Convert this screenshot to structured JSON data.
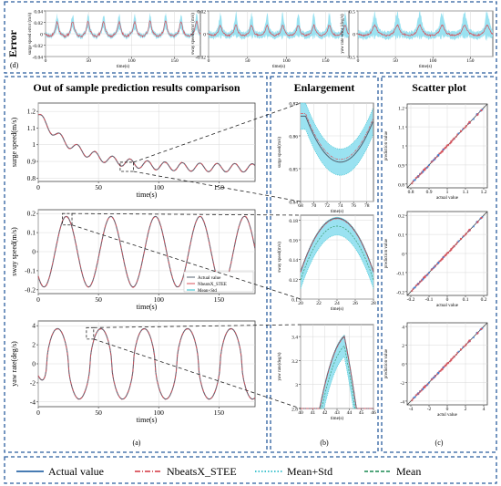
{
  "sections": {
    "error_title": "Error",
    "comparison_title": "Out of sample prediction results comparison",
    "enlargement_title": "Enlargement",
    "scatter_title": "Scatter plot"
  },
  "panel_tags": {
    "d": "(d)",
    "a": "(a)",
    "b": "(b)",
    "c": "(c)"
  },
  "legend": {
    "items": [
      {
        "label": "Actual value",
        "style": "solid",
        "color": "#2e6aa8"
      },
      {
        "label": "NbeatsX_STEE",
        "style": "dashdot",
        "color": "#d9505a"
      },
      {
        "label": "Mean+Std",
        "style": "dotted",
        "color": "#2bbdc9"
      },
      {
        "label": "Mean",
        "style": "dashed",
        "color": "#3a9a6a"
      }
    ]
  },
  "colors": {
    "actual": "#556070",
    "prediction": "#d9505a",
    "mean": "#2bbdc9",
    "band": "#8fdff0",
    "box": "#2b5d9e"
  },
  "chart_data": [
    {
      "id": "error-surge",
      "type": "line",
      "title": "",
      "xlabel": "time(s)",
      "ylabel": "surge speed error (m/s)",
      "xlim": [
        0,
        180
      ],
      "ylim": [
        -0.04,
        0.04
      ],
      "xticks": [
        0,
        50,
        100,
        150
      ],
      "yticks": [
        -0.04,
        -0.02,
        0,
        0.02,
        0.04
      ],
      "series": [
        {
          "kind": "error",
          "period": 18,
          "amp": 0.017,
          "band": 0.01
        }
      ]
    },
    {
      "id": "error-sway",
      "type": "line",
      "title": "",
      "xlabel": "time(s)",
      "ylabel": "sway speed error (m/s)",
      "xlim": [
        0,
        180
      ],
      "ylim": [
        -0.02,
        0.02
      ],
      "xticks": [
        0,
        50,
        100,
        150
      ],
      "yticks": [
        -0.02,
        0,
        0.02
      ],
      "series": [
        {
          "kind": "error",
          "period": 20,
          "amp": 0.006,
          "band": 0.008
        }
      ]
    },
    {
      "id": "error-yaw",
      "type": "line",
      "title": "",
      "xlabel": "time(s)",
      "ylabel": "yaw rate error (deg/s)",
      "xlim": [
        0,
        180
      ],
      "ylim": [
        -0.5,
        0.5
      ],
      "xticks": [
        0,
        50,
        100,
        150
      ],
      "yticks": [
        -0.5,
        0,
        0.5
      ],
      "series": [
        {
          "kind": "error",
          "period": 30,
          "amp": 0.15,
          "band": 0.22
        }
      ]
    },
    {
      "id": "surge-main",
      "type": "line",
      "xlabel": "time(s)",
      "ylabel": "surge speed(m/s)",
      "xlim": [
        0,
        180
      ],
      "ylim": [
        0.78,
        1.25
      ],
      "xticks": [
        0,
        50,
        100,
        150
      ],
      "yticks": [
        0.8,
        0.9,
        1.0,
        1.1,
        1.2
      ],
      "series": [
        {
          "name": "Actual value",
          "kind": "surge"
        },
        {
          "name": "NbeatsX_STEE",
          "kind": "surge"
        }
      ]
    },
    {
      "id": "sway-main",
      "type": "line",
      "xlabel": "time(s)",
      "ylabel": "sway speed(m/s)",
      "xlim": [
        0,
        180
      ],
      "ylim": [
        -0.22,
        0.22
      ],
      "xticks": [
        0,
        50,
        100,
        150
      ],
      "yticks": [
        -0.2,
        -0.1,
        0.0,
        0.1,
        0.2
      ],
      "legend": [
        "Actual value",
        "NbeatsX_STEE",
        "Mean+Std"
      ],
      "series": [
        {
          "name": "Actual value",
          "kind": "sway"
        },
        {
          "name": "NbeatsX_STEE",
          "kind": "sway"
        }
      ]
    },
    {
      "id": "yaw-main",
      "type": "line",
      "xlabel": "time(s)",
      "ylabel": "yaw rate(deg/s)",
      "xlim": [
        0,
        180
      ],
      "ylim": [
        -4.5,
        4.5
      ],
      "xticks": [
        0,
        50,
        100,
        150
      ],
      "yticks": [
        -4.0,
        -2.0,
        0.0,
        2.0,
        4.0
      ],
      "series": [
        {
          "name": "Actual value",
          "kind": "yaw"
        },
        {
          "name": "NbeatsX_STEE",
          "kind": "yaw"
        }
      ]
    },
    {
      "id": "surge-zoom",
      "type": "line",
      "xlabel": "time(s)",
      "ylabel": "surge speed(m/s)",
      "xlim": [
        68,
        79
      ],
      "ylim": [
        0.84,
        0.87
      ],
      "xticks": [
        68,
        70,
        72,
        74,
        76,
        78
      ],
      "yticks": [
        0.84,
        0.85,
        0.86,
        0.87
      ],
      "ytick_labels": [
        "0.84",
        "0.85",
        "0.86",
        "0.87"
      ],
      "series": [
        {
          "kind": "zoom",
          "center": 74,
          "min": 0.852,
          "max": 0.866,
          "band": 0.004
        }
      ]
    },
    {
      "id": "sway-zoom",
      "type": "line",
      "xlabel": "time(s)",
      "ylabel": "sway speed(m/s)",
      "xlim": [
        20,
        28
      ],
      "ylim": [
        0.1,
        0.185
      ],
      "xticks": [
        20,
        22,
        24,
        26,
        28
      ],
      "yticks": [
        0.1,
        0.12,
        0.14,
        0.16,
        0.18
      ],
      "series": [
        {
          "kind": "zoompeak",
          "center": 24,
          "peak": 0.182,
          "band": 0.009
        }
      ]
    },
    {
      "id": "yaw-zoom",
      "type": "line",
      "xlabel": "time(s)",
      "ylabel": "yaw rate(deg/s)",
      "xlim": [
        40,
        46
      ],
      "ylim": [
        2.8,
        3.5
      ],
      "xticks": [
        40,
        41,
        42,
        43,
        44,
        45,
        46
      ],
      "yticks": [
        2.8,
        3.0,
        3.2,
        3.4
      ],
      "series": [
        {
          "kind": "zoompeak2",
          "center": 44,
          "peak": 3.42,
          "band": 0.09
        }
      ]
    },
    {
      "id": "scatter-surge",
      "type": "scatter",
      "xlabel": "actual value",
      "ylabel": "prediction value",
      "xlim": [
        0.78,
        1.22
      ],
      "ylim": [
        0.78,
        1.22
      ],
      "xticks": [
        0.8,
        0.9,
        1.0,
        1.1,
        1.2
      ],
      "yticks": [
        0.8,
        0.9,
        1.0,
        1.1,
        1.2
      ],
      "series": [
        {
          "kind": "diag",
          "noise": 0.004
        }
      ]
    },
    {
      "id": "scatter-sway",
      "type": "scatter",
      "xlabel": "actual value",
      "ylabel": "prediction value",
      "xlim": [
        -0.22,
        0.22
      ],
      "ylim": [
        -0.22,
        0.22
      ],
      "xticks": [
        -0.2,
        -0.1,
        0,
        0.1,
        0.2
      ],
      "yticks": [
        -0.2,
        -0.1,
        0,
        0.1,
        0.2
      ],
      "series": [
        {
          "kind": "diag",
          "noise": 0.003
        }
      ]
    },
    {
      "id": "scatter-yaw",
      "type": "scatter",
      "xlabel": "actul value",
      "ylabel": "prediction value",
      "xlim": [
        -4.4,
        4.4
      ],
      "ylim": [
        -4.4,
        4.4
      ],
      "xticks": [
        -4,
        -2,
        0,
        2,
        4
      ],
      "yticks": [
        -4,
        -2,
        0,
        2,
        4
      ],
      "series": [
        {
          "kind": "diag",
          "noise": 0.07
        }
      ]
    }
  ]
}
